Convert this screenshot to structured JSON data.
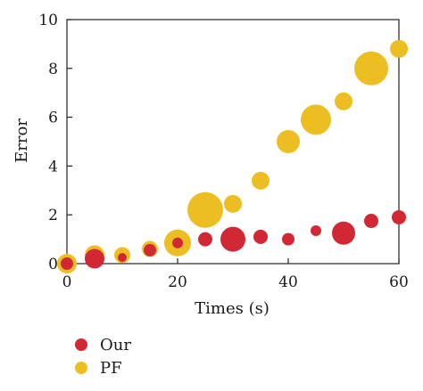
{
  "chart_data": {
    "type": "scatter",
    "xlabel": "Times (s)",
    "ylabel": "Error",
    "xlim": [
      0,
      60
    ],
    "ylim": [
      0,
      10
    ],
    "xticks": [
      0,
      20,
      40,
      60
    ],
    "yticks": [
      0,
      2,
      4,
      6,
      8,
      10
    ],
    "legend_position": "bottom-left",
    "grid": false,
    "series": [
      {
        "name": "PF",
        "color": "#EDBE22",
        "points": [
          {
            "x": 0,
            "y": 0.0,
            "size": 11
          },
          {
            "x": 5,
            "y": 0.35,
            "size": 11
          },
          {
            "x": 10,
            "y": 0.35,
            "size": 9
          },
          {
            "x": 15,
            "y": 0.6,
            "size": 9
          },
          {
            "x": 20,
            "y": 0.85,
            "size": 15
          },
          {
            "x": 25,
            "y": 2.2,
            "size": 20
          },
          {
            "x": 30,
            "y": 2.45,
            "size": 10
          },
          {
            "x": 35,
            "y": 3.4,
            "size": 10
          },
          {
            "x": 40,
            "y": 5.0,
            "size": 13
          },
          {
            "x": 45,
            "y": 5.9,
            "size": 17
          },
          {
            "x": 50,
            "y": 6.65,
            "size": 10
          },
          {
            "x": 55,
            "y": 8.0,
            "size": 19
          },
          {
            "x": 60,
            "y": 8.8,
            "size": 10
          }
        ]
      },
      {
        "name": "Our",
        "color": "#D12833",
        "points": [
          {
            "x": 0,
            "y": 0.0,
            "size": 7
          },
          {
            "x": 5,
            "y": 0.2,
            "size": 11
          },
          {
            "x": 10,
            "y": 0.25,
            "size": 5
          },
          {
            "x": 15,
            "y": 0.55,
            "size": 7
          },
          {
            "x": 20,
            "y": 0.85,
            "size": 6
          },
          {
            "x": 25,
            "y": 1.0,
            "size": 8
          },
          {
            "x": 30,
            "y": 1.0,
            "size": 14
          },
          {
            "x": 35,
            "y": 1.1,
            "size": 8
          },
          {
            "x": 40,
            "y": 1.0,
            "size": 7
          },
          {
            "x": 45,
            "y": 1.35,
            "size": 6
          },
          {
            "x": 50,
            "y": 1.25,
            "size": 13
          },
          {
            "x": 55,
            "y": 1.75,
            "size": 8
          },
          {
            "x": 60,
            "y": 1.9,
            "size": 8
          }
        ]
      }
    ],
    "legend": [
      {
        "label": "Our",
        "color": "#D12833"
      },
      {
        "label": "PF",
        "color": "#EDBE22"
      }
    ]
  }
}
